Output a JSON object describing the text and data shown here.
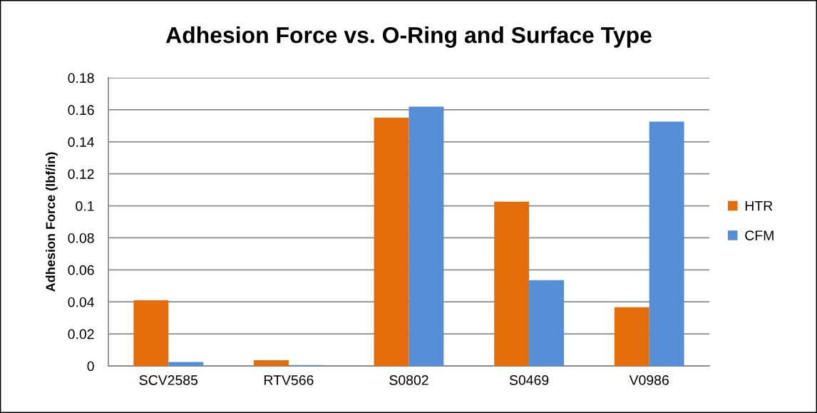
{
  "chart_data": {
    "type": "bar",
    "title": "Adhesion Force vs. O-Ring and Surface Type",
    "ylabel": "Adhesion Force (lbf/in)",
    "categories": [
      "SCV2585",
      "RTV566",
      "S0802",
      "S0469",
      "V0986"
    ],
    "series": [
      {
        "name": "HTR",
        "color": "#e46c0a",
        "values": [
          0.041,
          0.0036,
          0.155,
          0.1026,
          0.0366
        ]
      },
      {
        "name": "CFM",
        "color": "#558ed5",
        "values": [
          0.0025,
          0.0006,
          0.162,
          0.0536,
          0.1526
        ]
      }
    ],
    "ylim": [
      0,
      0.18
    ],
    "yticks": [
      {
        "value": 0,
        "label": "0"
      },
      0.02,
      0.04,
      0.06,
      0.08,
      {
        "value": 0.1,
        "label": "0.1"
      },
      0.12,
      0.14,
      0.16,
      0.18
    ],
    "grid": "y",
    "legend": "right"
  }
}
